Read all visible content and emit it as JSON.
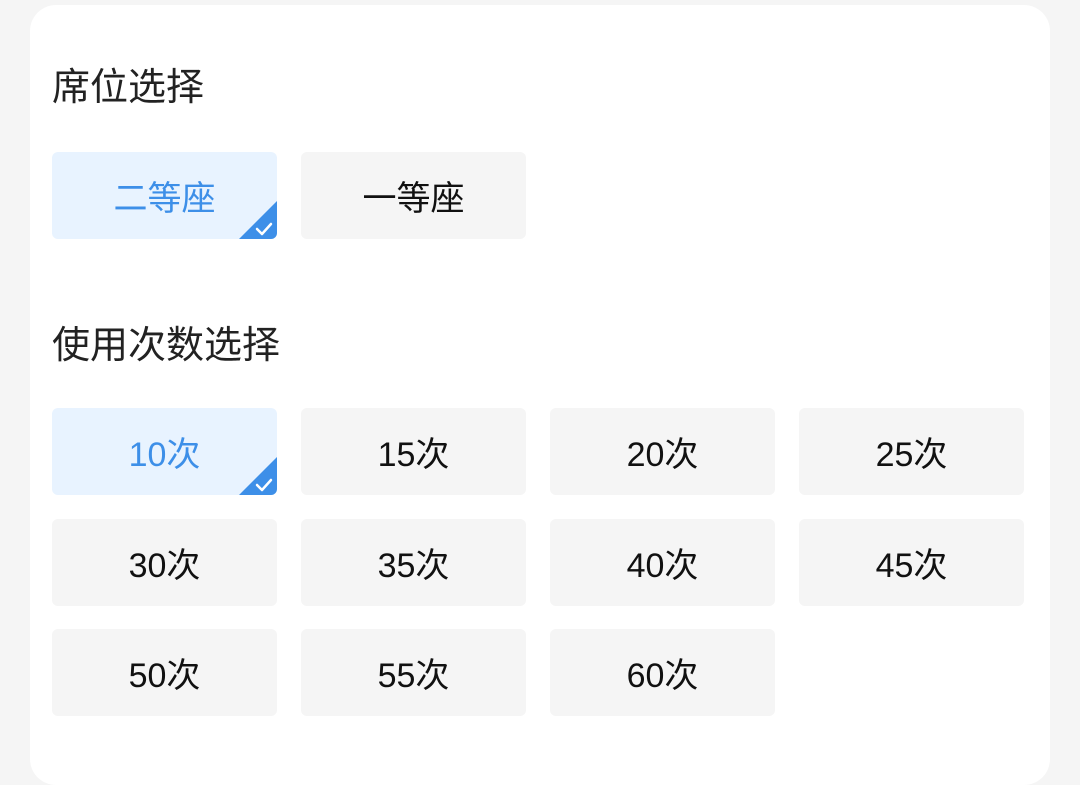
{
  "seat_section": {
    "title": "席位选择",
    "options": [
      {
        "label": "二等座",
        "selected": true
      },
      {
        "label": "一等座",
        "selected": false
      }
    ]
  },
  "count_section": {
    "title": "使用次数选择",
    "options": [
      {
        "label": "10次",
        "selected": true
      },
      {
        "label": "15次",
        "selected": false
      },
      {
        "label": "20次",
        "selected": false
      },
      {
        "label": "25次",
        "selected": false
      },
      {
        "label": "30次",
        "selected": false
      },
      {
        "label": "35次",
        "selected": false
      },
      {
        "label": "40次",
        "selected": false
      },
      {
        "label": "45次",
        "selected": false
      },
      {
        "label": "50次",
        "selected": false
      },
      {
        "label": "55次",
        "selected": false
      },
      {
        "label": "60次",
        "selected": false
      }
    ]
  },
  "colors": {
    "accent": "#3d8fe8",
    "selected_bg": "#e8f3ff",
    "option_bg": "#f5f5f5"
  },
  "icons": {
    "selected_marker": "check-corner-icon"
  }
}
